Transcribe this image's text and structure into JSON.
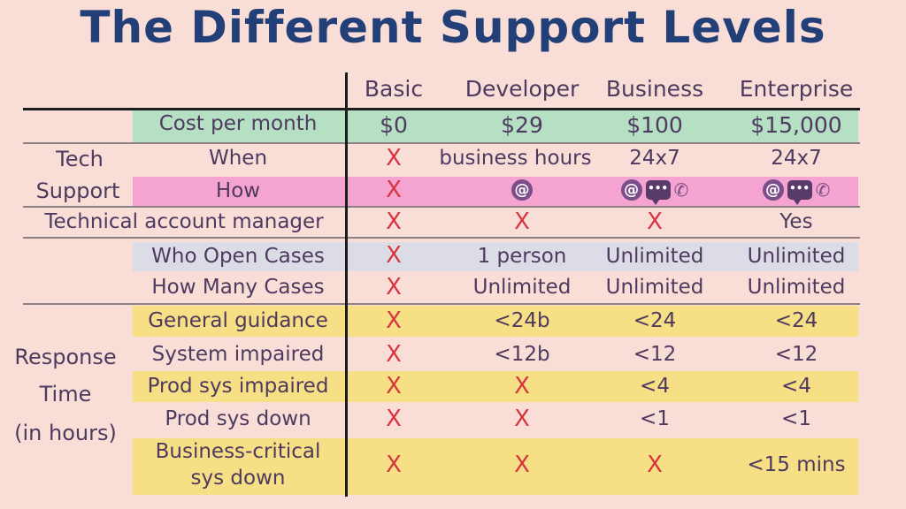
{
  "title": "The Different Support Levels",
  "columns": [
    "Basic",
    "Developer",
    "Business",
    "Enterprise"
  ],
  "groups": {
    "tech_support": [
      "Tech",
      "Support"
    ],
    "response_time": [
      "Response",
      "Time",
      "(in hours)"
    ]
  },
  "rows": {
    "cost": {
      "label": "Cost per month",
      "values": [
        "$0",
        "$29",
        "$100",
        "$15,000"
      ]
    },
    "when": {
      "label": "When",
      "values": [
        "X",
        "business hours",
        "24x7",
        "24x7"
      ]
    },
    "how": {
      "label": "How",
      "basic": "X",
      "icons": {
        "at": "@",
        "chat": "•••",
        "phone": "✆"
      }
    },
    "tam": {
      "label": "Technical account manager",
      "values": [
        "X",
        "X",
        "X",
        "Yes"
      ]
    },
    "who": {
      "label": "Who Open Cases",
      "values": [
        "X",
        "1 person",
        "Unlimited",
        "Unlimited"
      ]
    },
    "howmany": {
      "label": "How Many Cases",
      "values": [
        "X",
        "Unlimited",
        "Unlimited",
        "Unlimited"
      ]
    },
    "general": {
      "label": "General guidance",
      "values": [
        "X",
        "<24b",
        "<24",
        "<24"
      ]
    },
    "system": {
      "label": "System impaired",
      "values": [
        "X",
        "<12b",
        "<12",
        "<12"
      ]
    },
    "prodimp": {
      "label": "Prod sys impaired",
      "values": [
        "X",
        "X",
        "<4",
        "<4"
      ]
    },
    "proddown": {
      "label": "Prod sys down",
      "values": [
        "X",
        "X",
        "<1",
        "<1"
      ]
    },
    "critical": {
      "label_lines": [
        "Business-critical",
        "sys down"
      ],
      "values": [
        "X",
        "X",
        "X",
        "<15 mins"
      ]
    }
  },
  "colors": {
    "green": "#b5e0c4",
    "pink": "#f5a3d0",
    "gray": "#dcdce6",
    "yellow": "#f7df85",
    "x_red": "#d8343e",
    "title_blue": "#223f78"
  }
}
